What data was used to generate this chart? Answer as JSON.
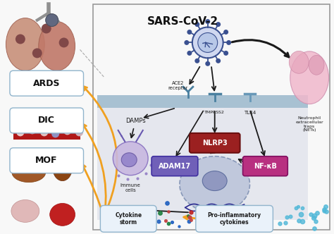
{
  "bg_color": "#ffffff",
  "labels": {
    "sars": "SARS-CoV-2",
    "ace2": "ACE2\nreceptor",
    "tmprss2": "TMPRSS2",
    "tlr4": "TLR4",
    "damps": "DAMPs",
    "nlrp3": "NLRP3",
    "adam17": "ADAM17",
    "nfkb": "NF-κB",
    "immune": "Immune\ncells",
    "cytokine_storm": "Cytokine\nstorm",
    "pro_inflam": "Pro-inflammatory\ncytokines",
    "nets": "Neutrophil\nextracellular\ntraps\n(NETs)",
    "ards": "ARDS",
    "dic": "DIC",
    "mof": "MOF"
  },
  "colors": {
    "nlrp3_face": "#9b2020",
    "nlrp3_edge": "#6a1010",
    "adam17_face": "#7060b8",
    "adam17_edge": "#4030a0",
    "nfkb_face": "#b83080",
    "nfkb_edge": "#801060",
    "arrow_black": "#1a1a1a",
    "arrow_orange": "#f0a020",
    "membrane": "#9ab8cc",
    "inner_bg": "#dde0ea",
    "main_box_edge": "#999999",
    "main_box_face": "#f8f8f8",
    "box_outline": "#90b4cc",
    "virus_face": "#d0d8f0",
    "virus_edge": "#3a5090",
    "cell_face": "#c0c8dc",
    "cell_edge": "#8898b8",
    "nucleus_face": "#9098c0",
    "dna_color": "#2a2a90",
    "nets_face": "#f0b8cc",
    "nets_edge": "#c880a0",
    "immune_face": "#c8b8e0",
    "immune_edge": "#8870c0"
  }
}
